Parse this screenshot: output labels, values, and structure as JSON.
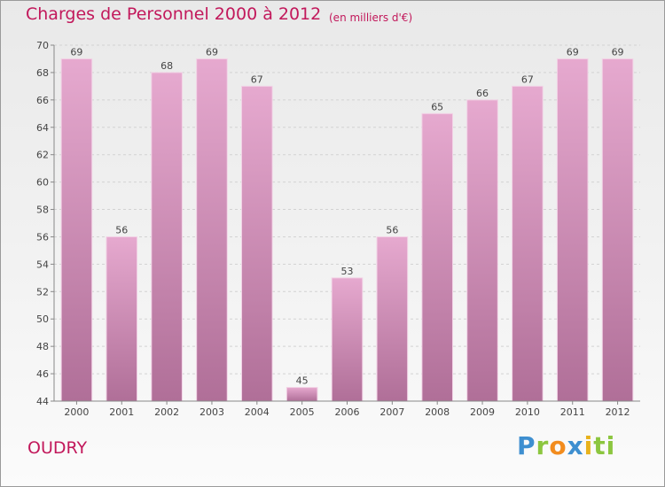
{
  "header": {
    "title": "Charges de Personnel 2000 à 2012",
    "subtitle": "(en milliers d'€)"
  },
  "footer": {
    "commune": "OUDRY",
    "logo": {
      "letters": [
        "P",
        "r",
        "o",
        "x",
        "i",
        "ti"
      ],
      "colors": [
        "#3e8fd0",
        "#8cc63f",
        "#f28c1e",
        "#3e8fd0",
        "#e8b21c",
        "#8cc63f"
      ]
    }
  },
  "chart_data": {
    "type": "bar",
    "title": "Charges de Personnel 2000 à 2012",
    "subtitle": "(en milliers d'€)",
    "categories": [
      "2000",
      "2001",
      "2002",
      "2003",
      "2004",
      "2005",
      "2006",
      "2007",
      "2008",
      "2009",
      "2010",
      "2011",
      "2012"
    ],
    "values": [
      69,
      56,
      68,
      69,
      67,
      45,
      53,
      56,
      65,
      66,
      67,
      69,
      69
    ],
    "ylim": [
      44,
      70
    ],
    "yticks": [
      44,
      46,
      48,
      50,
      52,
      54,
      56,
      58,
      60,
      62,
      64,
      66,
      68,
      70
    ],
    "grid": true,
    "bar_color": "#d98fbb",
    "data_labels": true
  }
}
